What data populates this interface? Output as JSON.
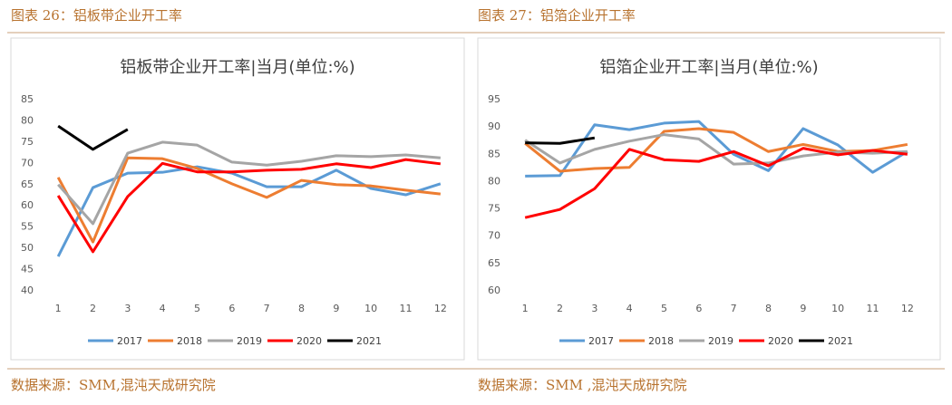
{
  "chart_data": [
    {
      "type": "line",
      "caption": "图表 26：铝板带企业开工率",
      "title": "铝板带企业开工率|当月(单位:%)",
      "source": "数据来源：SMM,混沌天成研究院",
      "categories": [
        1,
        2,
        3,
        4,
        5,
        6,
        7,
        8,
        9,
        10,
        11,
        12
      ],
      "ylim": [
        40,
        85
      ],
      "yticks": [
        40,
        45,
        50,
        55,
        60,
        65,
        70,
        75,
        80,
        85
      ],
      "grid": false,
      "series": [
        {
          "name": "2017",
          "color": "#5b9bd5",
          "values": [
            48.1,
            64.3,
            67.7,
            67.9,
            69.2,
            67.7,
            64.5,
            64.5,
            68.4,
            64.1,
            62.6,
            65.2
          ]
        },
        {
          "name": "2018",
          "color": "#ed7d31",
          "values": [
            66.7,
            51.5,
            71.3,
            71.1,
            68.8,
            65.2,
            62,
            66,
            65,
            64.7,
            63.7,
            62.8
          ]
        },
        {
          "name": "2019",
          "color": "#a5a5a5",
          "values": [
            65,
            55.8,
            72.4,
            75,
            74.3,
            70.3,
            69.6,
            70.5,
            71.8,
            71.6,
            72,
            71.3
          ]
        },
        {
          "name": "2020",
          "color": "#ff0000",
          "values": [
            62.4,
            49.2,
            62.2,
            70,
            68,
            68,
            68.4,
            68.6,
            69.9,
            69,
            70.9,
            69.9
          ]
        },
        {
          "name": "2021",
          "color": "#000000",
          "values": [
            78.8,
            73.3,
            78,
            null,
            null,
            null,
            null,
            null,
            null,
            null,
            null,
            null
          ]
        }
      ]
    },
    {
      "type": "line",
      "caption": "图表 27：铝箔企业开工率",
      "title": "铝箔企业开工率|当月(单位:%)",
      "source": "数据来源：SMM ,混沌天成研究院",
      "categories": [
        1,
        2,
        3,
        4,
        5,
        6,
        7,
        8,
        9,
        10,
        11,
        12
      ],
      "ylim": [
        60,
        95
      ],
      "yticks": [
        60,
        65,
        70,
        75,
        80,
        85,
        90,
        95
      ],
      "grid": false,
      "series": [
        {
          "name": "2017",
          "color": "#5b9bd5",
          "values": [
            81,
            81.1,
            90.4,
            89.5,
            90.7,
            91,
            85,
            82,
            89.7,
            86.7,
            81.7,
            85.5
          ]
        },
        {
          "name": "2018",
          "color": "#ed7d31",
          "values": [
            87,
            81.9,
            82.4,
            82.6,
            89.2,
            89.7,
            89,
            85.5,
            86.8,
            85.5,
            85.7,
            86.8
          ]
        },
        {
          "name": "2019",
          "color": "#a5a5a5",
          "values": [
            87.6,
            83.4,
            85.9,
            87.4,
            88.6,
            87.8,
            83.2,
            83.4,
            84.7,
            85.4,
            85.2,
            85.5
          ]
        },
        {
          "name": "2020",
          "color": "#ff0000",
          "values": [
            73.4,
            74.9,
            78.7,
            85.9,
            84,
            83.7,
            85.5,
            82.9,
            86.1,
            84.9,
            85.7,
            85
          ]
        },
        {
          "name": "2021",
          "color": "#000000",
          "values": [
            87.1,
            87,
            88,
            null,
            null,
            null,
            null,
            null,
            null,
            null,
            null,
            null
          ]
        }
      ]
    }
  ]
}
